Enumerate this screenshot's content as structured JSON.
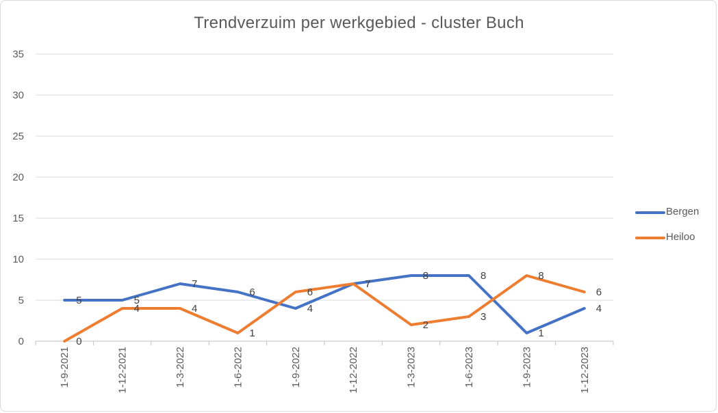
{
  "chart_data": {
    "type": "line",
    "title": "Trendverzuim per werkgebied - cluster Buch",
    "categories": [
      "1-9-2021",
      "1-12-2021",
      "1-3-2022",
      "1-6-2022",
      "1-9-2022",
      "1-12-2022",
      "1-3-2023",
      "1-6-2023",
      "1-9-2023",
      "1-12-2023"
    ],
    "ylim": [
      0,
      35
    ],
    "yticks": [
      "0",
      "5",
      "10",
      "15",
      "20",
      "25",
      "30",
      "35"
    ],
    "grid": true,
    "legend_position": "right",
    "series": [
      {
        "name": "Bergen",
        "color": "#4472c4",
        "values": [
          5,
          5,
          7,
          6,
          4,
          7,
          8,
          8,
          1,
          4
        ],
        "labels": [
          "5",
          "5",
          "7",
          "6",
          "4",
          "7",
          "8",
          "8",
          "1",
          "4"
        ]
      },
      {
        "name": "Heiloo",
        "color": "#ed7d31",
        "values": [
          0,
          4,
          4,
          1,
          6,
          7,
          2,
          3,
          8,
          6
        ],
        "labels": [
          "0",
          "4",
          "4",
          "1",
          "6",
          "7",
          "2",
          "3",
          "8",
          "6"
        ]
      }
    ]
  }
}
